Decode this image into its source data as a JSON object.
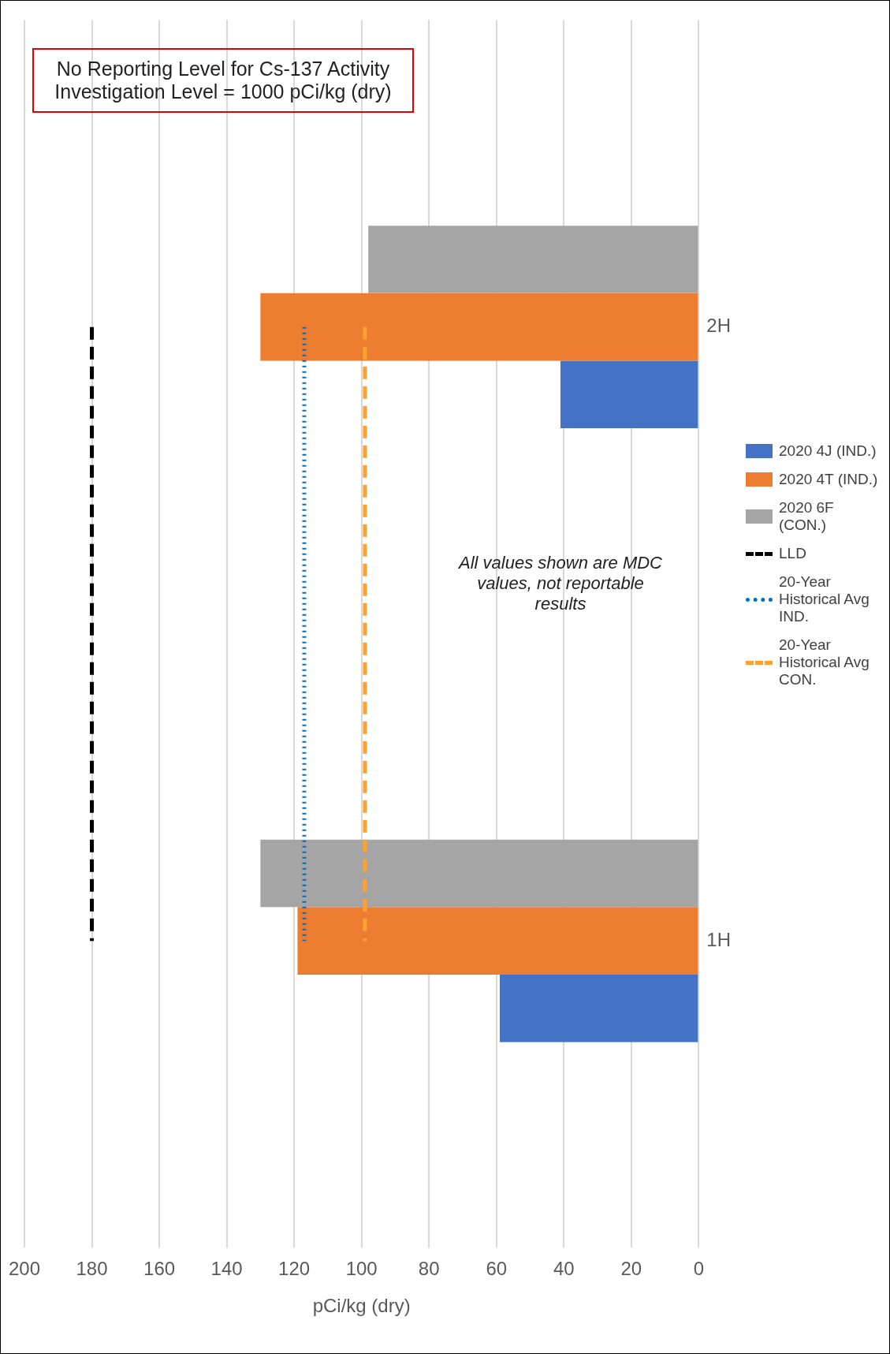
{
  "chart_data": {
    "type": "bar",
    "orientation": "horizontal",
    "xlabel": "pCi/kg (dry)",
    "categories": [
      "2H",
      "1H"
    ],
    "series": [
      {
        "name": "2020 4J (IND.)",
        "color": "#4472c4",
        "values": [
          41,
          59
        ]
      },
      {
        "name": "2020 4T (IND.)",
        "color": "#ed7d31",
        "values": [
          130,
          119
        ]
      },
      {
        "name": "2020 6F (CON.)",
        "color": "#a5a5a5",
        "values": [
          98,
          130
        ]
      },
      {
        "name": "LLD",
        "type": "line",
        "color": "#000000",
        "line_style": "dashed",
        "values": [
          180,
          180
        ]
      },
      {
        "name": "20-Year Historical Avg IND.",
        "type": "line",
        "color": "#0070c0",
        "line_style": "dotted",
        "values": [
          117,
          117
        ]
      },
      {
        "name": "20-Year Historical Avg CON.",
        "type": "line",
        "color": "#ffa030",
        "line_style": "dashed",
        "values": [
          99,
          99
        ]
      }
    ],
    "xlim": [
      200,
      0
    ],
    "xticks": [
      0,
      20,
      40,
      60,
      80,
      100,
      120,
      140,
      160,
      180,
      200
    ],
    "grid": "x",
    "legend": "right",
    "annotations": [
      "No Reporting Level for Cs-137 Activity\nInvestigation Level = 1000 pCi/kg (dry)",
      "All values shown are MDC values, not reportable results"
    ]
  }
}
